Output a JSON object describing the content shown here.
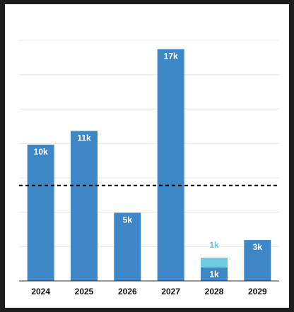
{
  "chart_data": {
    "type": "bar",
    "title": "",
    "xlabel": "",
    "ylabel": "",
    "categories": [
      "2024",
      "2025",
      "2026",
      "2027",
      "2028",
      "2029"
    ],
    "series": [
      {
        "values": [
          10000,
          11000,
          5000,
          17000,
          1000,
          3000
        ],
        "labels": [
          "10k",
          "11k",
          "5k",
          "17k",
          "1k",
          "3k"
        ],
        "color": "#3d87c7"
      },
      {
        "values": [
          0,
          0,
          0,
          0,
          700,
          0
        ],
        "labels": [
          "",
          "",
          "",
          "",
          "1k",
          ""
        ],
        "color": "#6ccbe0"
      }
    ],
    "reference_line": {
      "value": 7000,
      "style": "dashed",
      "color": "#000000"
    },
    "ylim": [
      0,
      17500
    ],
    "grid": true,
    "y_axis_labels_shown": false,
    "label_colors": {
      "inside": "#ffffff",
      "outside": "#6ccbe0"
    },
    "axis_color": "#333333",
    "grid_color": "#e6e6e6"
  }
}
